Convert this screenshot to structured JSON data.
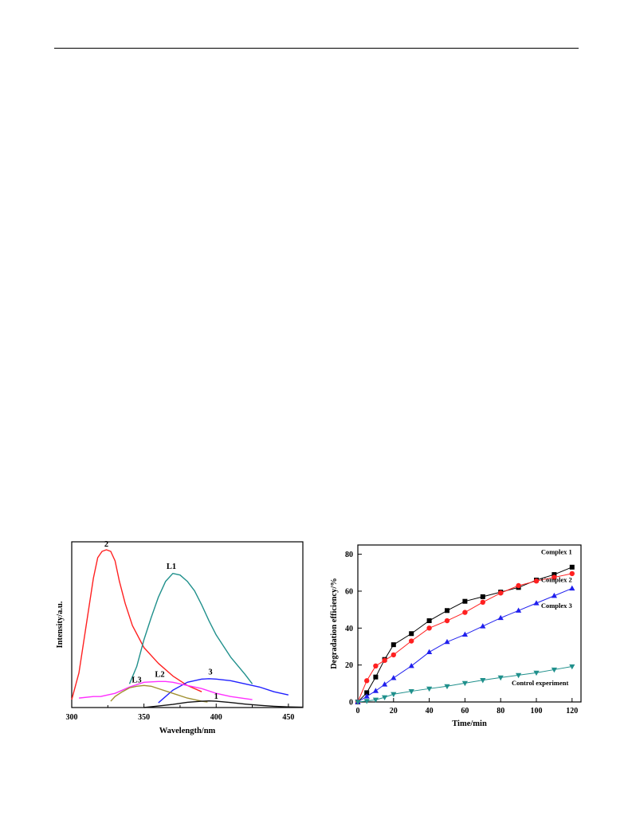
{
  "chart_data": [
    {
      "type": "line",
      "xlabel": "Wavelength/nm",
      "ylabel": "Intensity/a.u.",
      "xlim": [
        300,
        460
      ],
      "ylim": [
        0,
        1.0
      ],
      "xticks": [
        300,
        350,
        400,
        450
      ],
      "y_tick_labels": false,
      "legend": "none",
      "series": [
        {
          "name": "2",
          "color": "#ff2020",
          "x": [
            300,
            305,
            310,
            315,
            318,
            321,
            324,
            327,
            330,
            333,
            337,
            342,
            350,
            360,
            370,
            380,
            390
          ],
          "y": [
            0.05,
            0.22,
            0.52,
            0.82,
            0.95,
            0.99,
            1.0,
            0.99,
            0.93,
            0.8,
            0.66,
            0.52,
            0.38,
            0.28,
            0.2,
            0.14,
            0.1
          ],
          "label_pos": [
            324,
            1.02
          ]
        },
        {
          "name": "L1",
          "color": "#20908c",
          "x": [
            340,
            345,
            350,
            355,
            360,
            365,
            370,
            375,
            380,
            385,
            390,
            395,
            400,
            410,
            420,
            425
          ],
          "y": [
            0.15,
            0.26,
            0.43,
            0.57,
            0.7,
            0.8,
            0.85,
            0.84,
            0.8,
            0.74,
            0.65,
            0.55,
            0.46,
            0.32,
            0.21,
            0.15
          ],
          "label_pos": [
            369,
            0.88
          ]
        },
        {
          "name": "3",
          "color": "#2020ff",
          "x": [
            360,
            370,
            380,
            390,
            395,
            400,
            410,
            420,
            430,
            440,
            450
          ],
          "y": [
            0.03,
            0.11,
            0.16,
            0.18,
            0.183,
            0.18,
            0.17,
            0.15,
            0.13,
            0.1,
            0.08
          ],
          "label_pos": [
            396,
            0.21
          ]
        },
        {
          "name": "L2",
          "color": "#ff30ff",
          "x": [
            305,
            315,
            320,
            330,
            340,
            350,
            360,
            365,
            370,
            380,
            390,
            400,
            410,
            425
          ],
          "y": [
            0.06,
            0.07,
            0.07,
            0.09,
            0.13,
            0.16,
            0.165,
            0.165,
            0.16,
            0.14,
            0.12,
            0.09,
            0.07,
            0.05
          ],
          "label_pos": [
            361,
            0.195
          ]
        },
        {
          "name": "L3",
          "color": "#a09030",
          "x": [
            327,
            330,
            335,
            340,
            345,
            350,
            355,
            360,
            370,
            380,
            390,
            394
          ],
          "y": [
            0.04,
            0.07,
            0.1,
            0.125,
            0.135,
            0.14,
            0.135,
            0.12,
            0.09,
            0.06,
            0.04,
            0.035
          ],
          "label_pos": [
            345,
            0.16
          ]
        },
        {
          "name": "1",
          "color": "#111111",
          "x": [
            350,
            360,
            370,
            380,
            390,
            395,
            400,
            410,
            420,
            430,
            440,
            450,
            460
          ],
          "y": [
            0.0,
            0.01,
            0.02,
            0.033,
            0.04,
            0.042,
            0.04,
            0.032,
            0.022,
            0.014,
            0.008,
            0.004,
            0.002
          ],
          "label_pos": [
            400,
            0.055
          ]
        }
      ]
    },
    {
      "type": "line",
      "xlabel": "Time/min",
      "ylabel": "Degradation efficiency/%",
      "xlim": [
        0,
        125
      ],
      "ylim": [
        0,
        85
      ],
      "xticks": [
        0,
        20,
        40,
        60,
        80,
        100,
        120
      ],
      "yticks": [
        0,
        20,
        40,
        60,
        80
      ],
      "legend": "labels next to curves",
      "series": [
        {
          "name": "Complex 1",
          "color": "#000000",
          "marker": "square",
          "x": [
            0,
            5,
            10,
            15,
            20,
            30,
            40,
            50,
            60,
            70,
            80,
            90,
            100,
            110,
            120
          ],
          "y": [
            0,
            5,
            13.5,
            23,
            31,
            37,
            44,
            49.5,
            54.5,
            57,
            59.5,
            62,
            66,
            69,
            73
          ],
          "label_pos": [
            120,
            80
          ]
        },
        {
          "name": "Complex 2",
          "color": "#ff2020",
          "marker": "circle",
          "x": [
            0,
            5,
            10,
            15,
            20,
            30,
            40,
            50,
            60,
            70,
            80,
            90,
            100,
            110,
            120
          ],
          "y": [
            0,
            11.5,
            19.5,
            22.5,
            25.5,
            33,
            40,
            44,
            48.5,
            54,
            59,
            63,
            65.5,
            67.5,
            69.5
          ],
          "label_pos": [
            120,
            65
          ]
        },
        {
          "name": "Complex 3",
          "color": "#2020ee",
          "marker": "triangle-up",
          "x": [
            0,
            5,
            10,
            15,
            20,
            30,
            40,
            50,
            60,
            70,
            80,
            90,
            100,
            110,
            120
          ],
          "y": [
            0,
            3,
            6,
            9.5,
            13,
            19.5,
            27,
            32.5,
            36.5,
            41,
            45.5,
            49.5,
            53.5,
            57.5,
            61.5
          ],
          "label_pos": [
            120,
            51
          ]
        },
        {
          "name": "Control experiment",
          "color": "#20908c",
          "marker": "triangle-down",
          "x": [
            0,
            5,
            10,
            15,
            20,
            30,
            40,
            50,
            60,
            70,
            80,
            90,
            100,
            110,
            120
          ],
          "y": [
            0,
            0.5,
            1.2,
            2.5,
            4.2,
            5.8,
            7.2,
            8.5,
            10.2,
            11.8,
            13.2,
            14.5,
            15.8,
            17.5,
            19.2
          ],
          "label_pos": [
            118,
            9
          ]
        }
      ]
    }
  ]
}
